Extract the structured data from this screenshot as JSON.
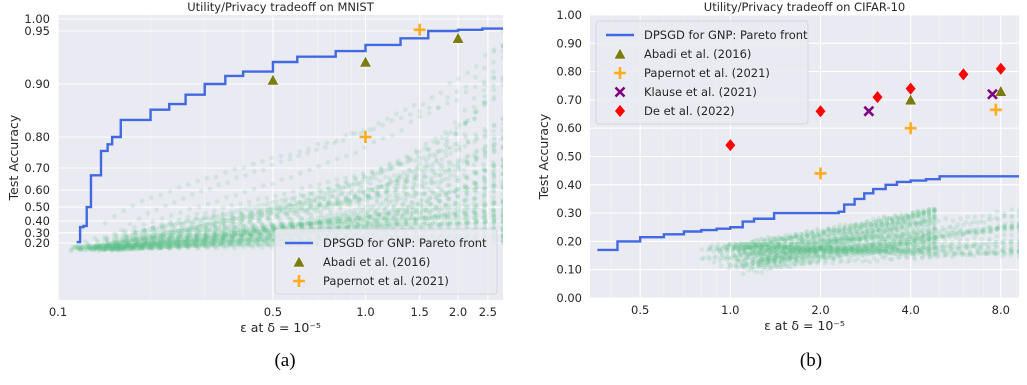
{
  "chart_data": [
    {
      "type": "line",
      "title": "Utility/Privacy tradeoff on MNIST",
      "xlabel": "ε at δ = 10⁻⁵",
      "ylabel": "Test Accuracy",
      "xscale": "log",
      "xlim": [
        0.1,
        2.8
      ],
      "ylim": [
        0.12,
        1.0
      ],
      "yscale": "nonlinear (expanded near 1.0)",
      "xticks": [
        "0.1",
        "0.5",
        "1.0",
        "1.5",
        "2.0",
        "2.5"
      ],
      "xtick_values": [
        0.1,
        0.5,
        1.0,
        1.5,
        2.0,
        2.5
      ],
      "yticks": [
        "0.20",
        "0.30",
        "0.40",
        "0.50",
        "0.60",
        "0.70",
        "0.80",
        "0.90",
        "0.95",
        "1.00"
      ],
      "ytick_values": [
        0.2,
        0.3,
        0.4,
        0.5,
        0.6,
        0.7,
        0.8,
        0.9,
        0.95,
        1.0
      ],
      "grid": true,
      "legend_position": "bottom-right",
      "caption": "(a)",
      "series": [
        {
          "name": "DPSGD for GNP: Pareto front",
          "kind": "step-line",
          "color": "#4169e1",
          "x": [
            0.115,
            0.118,
            0.121,
            0.124,
            0.128,
            0.132,
            0.138,
            0.145,
            0.15,
            0.16,
            0.175,
            0.2,
            0.23,
            0.26,
            0.3,
            0.35,
            0.4,
            0.5,
            0.6,
            0.8,
            1.0,
            1.3,
            1.6,
            2.0,
            2.4,
            2.8
          ],
          "y": [
            0.21,
            0.35,
            0.36,
            0.5,
            0.67,
            0.67,
            0.76,
            0.78,
            0.8,
            0.84,
            0.84,
            0.86,
            0.87,
            0.885,
            0.9,
            0.91,
            0.915,
            0.925,
            0.93,
            0.935,
            0.94,
            0.945,
            0.95,
            0.955,
            0.96,
            0.962
          ]
        },
        {
          "name": "Abadi et al. (2016)",
          "kind": "marker-triangle",
          "color": "#7c7c10",
          "x": [
            0.5,
            1.0,
            2.0
          ],
          "y": [
            0.905,
            0.925,
            0.945
          ]
        },
        {
          "name": "Papernot et al. (2021)",
          "kind": "marker-plus",
          "color": "#ffad1f",
          "x": [
            1.0,
            1.5
          ],
          "y": [
            0.8,
            0.955
          ]
        }
      ]
    },
    {
      "type": "line",
      "title": "Utility/Privacy tradeoff on CIFAR-10",
      "xlabel": "ε at δ = 10⁻⁵",
      "ylabel": "Test Accuracy",
      "xscale": "log",
      "xlim": [
        0.34,
        9.2
      ],
      "ylim": [
        0.0,
        1.0
      ],
      "xticks": [
        "0.5",
        "1.0",
        "2.0",
        "4.0",
        "8.0"
      ],
      "xtick_values": [
        0.5,
        1.0,
        2.0,
        4.0,
        8.0
      ],
      "yticks": [
        "0.00",
        "0.10",
        "0.20",
        "0.30",
        "0.40",
        "0.50",
        "0.60",
        "0.70",
        "0.80",
        "0.90",
        "1.00"
      ],
      "ytick_values": [
        0.0,
        0.1,
        0.2,
        0.3,
        0.4,
        0.5,
        0.6,
        0.7,
        0.8,
        0.9,
        1.0
      ],
      "grid": true,
      "legend_position": "top-left",
      "caption": "(b)",
      "series": [
        {
          "name": "DPSGD for GNP: Pareto front",
          "kind": "step-line",
          "color": "#4169e1",
          "x": [
            0.36,
            0.42,
            0.5,
            0.6,
            0.7,
            0.8,
            0.9,
            1.0,
            1.1,
            1.2,
            1.4,
            1.7,
            2.0,
            2.3,
            2.4,
            2.6,
            2.8,
            3.0,
            3.3,
            3.6,
            4.0,
            4.5,
            5.0,
            6.0,
            7.0,
            8.0,
            9.2
          ],
          "y": [
            0.17,
            0.2,
            0.215,
            0.225,
            0.235,
            0.24,
            0.245,
            0.25,
            0.27,
            0.28,
            0.3,
            0.3,
            0.3,
            0.305,
            0.33,
            0.35,
            0.37,
            0.385,
            0.4,
            0.41,
            0.415,
            0.42,
            0.43,
            0.43,
            0.43,
            0.43,
            0.43
          ]
        },
        {
          "name": "Abadi et al. (2016)",
          "kind": "marker-triangle",
          "color": "#7c7c10",
          "x": [
            4.0,
            8.0
          ],
          "y": [
            0.7,
            0.73
          ]
        },
        {
          "name": "Papernot et al. (2021)",
          "kind": "marker-plus",
          "color": "#ffad1f",
          "x": [
            2.0,
            4.0,
            7.7
          ],
          "y": [
            0.44,
            0.6,
            0.665
          ]
        },
        {
          "name": "Klause et al. (2021)",
          "kind": "marker-x",
          "color": "#800080",
          "x": [
            2.9,
            7.5
          ],
          "y": [
            0.66,
            0.72
          ]
        },
        {
          "name": "De et al. (2022)",
          "kind": "marker-diamond",
          "color": "#ff0000",
          "x": [
            1.0,
            2.0,
            3.1,
            4.0,
            6.0,
            8.0
          ],
          "y": [
            0.54,
            0.66,
            0.71,
            0.74,
            0.79,
            0.81
          ]
        }
      ]
    }
  ]
}
